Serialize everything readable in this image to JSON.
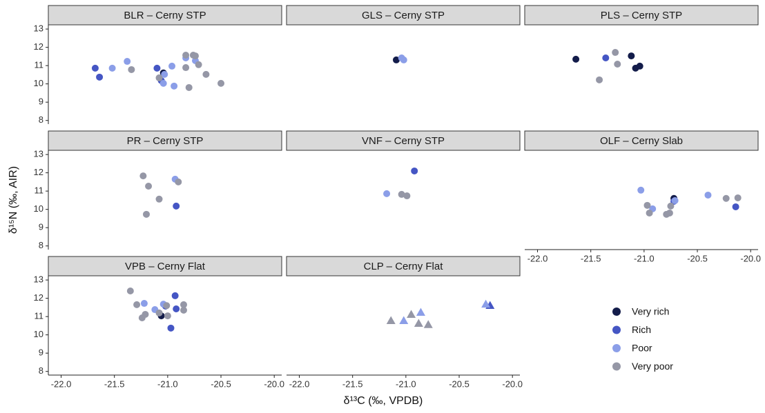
{
  "chart_data": {
    "type": "scatter",
    "xlabel": "δ¹³C (‰, VPDB)",
    "ylabel": "δ¹⁵N (‰, AIR)",
    "xlim": [
      -22.12,
      -19.93
    ],
    "xticks": [
      {
        "value": -22,
        "label": "-22.0"
      },
      -21.5,
      {
        "value": -21,
        "label": "-21.0"
      },
      -20.5,
      {
        "value": -20,
        "label": "-20.0"
      }
    ],
    "ylim": [
      7.8,
      13.23
    ],
    "yticks": [
      8,
      9,
      10,
      11,
      12,
      13
    ],
    "series": [
      {
        "name": "Very rich",
        "color": "#131c4a"
      },
      {
        "name": "Rich",
        "color": "#4556c4"
      },
      {
        "name": "Poor",
        "color": "#8b9ee8"
      },
      {
        "name": "Very poor",
        "color": "#9597a6"
      }
    ],
    "facets": [
      {
        "title": "BLR – Cerny STP",
        "marker": "circle",
        "series": [
          {
            "x": [
              -21.04
            ],
            "y": [
              10.6
            ]
          },
          {
            "x": [
              -21.68,
              -21.64,
              -21.1,
              -21.06
            ],
            "y": [
              10.86,
              10.37,
              10.86,
              10.18
            ]
          },
          {
            "x": [
              -21.52,
              -21.38,
              -21.03,
              -21.04,
              -20.96,
              -20.94,
              -20.83,
              -20.74
            ],
            "y": [
              10.86,
              11.23,
              10.52,
              10.03,
              10.97,
              9.88,
              11.42,
              11.27
            ]
          },
          {
            "x": [
              -21.34,
              -21.08,
              -20.83,
              -20.76,
              -20.74,
              -20.71,
              -20.83,
              -20.8,
              -20.64,
              -20.5
            ],
            "y": [
              10.78,
              10.33,
              11.57,
              11.57,
              11.53,
              11.05,
              10.89,
              9.8,
              10.52,
              10.03
            ]
          }
        ]
      },
      {
        "title": "GLS – Cerny STP",
        "marker": "circle",
        "series": [
          {
            "x": [
              -21.09
            ],
            "y": [
              11.31
            ]
          },
          {
            "x": [],
            "y": []
          },
          {
            "x": [
              -21.04,
              -21.02
            ],
            "y": [
              11.42,
              11.31
            ]
          },
          {
            "x": [],
            "y": []
          }
        ]
      },
      {
        "title": "PLS – Cerny STP",
        "marker": "circle",
        "series": [
          {
            "x": [
              -21.64,
              -21.12,
              -21.08,
              -21.04
            ],
            "y": [
              11.35,
              11.53,
              10.86,
              10.97
            ]
          },
          {
            "x": [
              -21.36
            ],
            "y": [
              11.42
            ]
          },
          {
            "x": [],
            "y": []
          },
          {
            "x": [
              -21.27,
              -21.25,
              -21.42
            ],
            "y": [
              11.72,
              11.08,
              10.22
            ]
          }
        ]
      },
      {
        "title": "PR – Cerny STP",
        "marker": "circle",
        "series": [
          {
            "x": [],
            "y": []
          },
          {
            "x": [
              -20.92
            ],
            "y": [
              10.18
            ]
          },
          {
            "x": [
              -20.93
            ],
            "y": [
              11.65
            ]
          },
          {
            "x": [
              -21.23,
              -21.18,
              -21.08,
              -21.2,
              -20.9
            ],
            "y": [
              11.83,
              11.27,
              10.56,
              9.73,
              11.5
            ]
          }
        ]
      },
      {
        "title": "VNF – Cerny STP",
        "marker": "circle",
        "series": [
          {
            "x": [],
            "y": []
          },
          {
            "x": [
              -20.92
            ],
            "y": [
              12.1
            ]
          },
          {
            "x": [
              -21.18
            ],
            "y": [
              10.86
            ]
          },
          {
            "x": [
              -21.04,
              -20.99
            ],
            "y": [
              10.82,
              10.74
            ]
          }
        ]
      },
      {
        "title": "OLF – Cerny Slab",
        "marker": "circle",
        "series": [
          {
            "x": [
              -20.72
            ],
            "y": [
              10.6
            ]
          },
          {
            "x": [
              -20.72,
              -20.14
            ],
            "y": [
              10.44,
              10.14
            ]
          },
          {
            "x": [
              -21.03,
              -20.92,
              -20.71,
              -20.4
            ],
            "y": [
              11.05,
              10.03,
              10.48,
              10.78
            ]
          },
          {
            "x": [
              -20.97,
              -20.95,
              -20.79,
              -20.76,
              -20.75,
              -20.23,
              -20.12
            ],
            "y": [
              10.22,
              9.8,
              9.73,
              9.8,
              10.18,
              10.6,
              10.63
            ]
          }
        ]
      },
      {
        "title": "VPB – Cerny Flat",
        "marker": "circle",
        "series": [
          {
            "x": [
              -21.06
            ],
            "y": [
              11.04
            ]
          },
          {
            "x": [
              -21.02,
              -20.93,
              -20.92,
              -20.97
            ],
            "y": [
              11.57,
              12.14,
              11.42,
              10.37
            ]
          },
          {
            "x": [
              -21.22,
              -21.12,
              -21.04
            ],
            "y": [
              11.72,
              11.38,
              11.68
            ]
          },
          {
            "x": [
              -21.35,
              -21.29,
              -21.21,
              -21.24,
              -21.08,
              -21.01,
              -21.0,
              -20.85,
              -20.85
            ],
            "y": [
              12.4,
              11.65,
              11.12,
              10.93,
              11.2,
              11.6,
              11.04,
              11.65,
              11.35
            ]
          }
        ]
      },
      {
        "title": "CLP – Cerny Flat",
        "marker": "triangle",
        "series": [
          {
            "x": [],
            "y": []
          },
          {
            "x": [
              -20.21
            ],
            "y": [
              11.61
            ]
          },
          {
            "x": [
              -21.02,
              -20.86,
              -20.25
            ],
            "y": [
              10.78,
              11.23,
              11.68
            ]
          },
          {
            "x": [
              -21.14,
              -20.95,
              -20.88,
              -20.79
            ],
            "y": [
              10.78,
              11.12,
              10.63,
              10.56
            ]
          }
        ]
      }
    ]
  }
}
